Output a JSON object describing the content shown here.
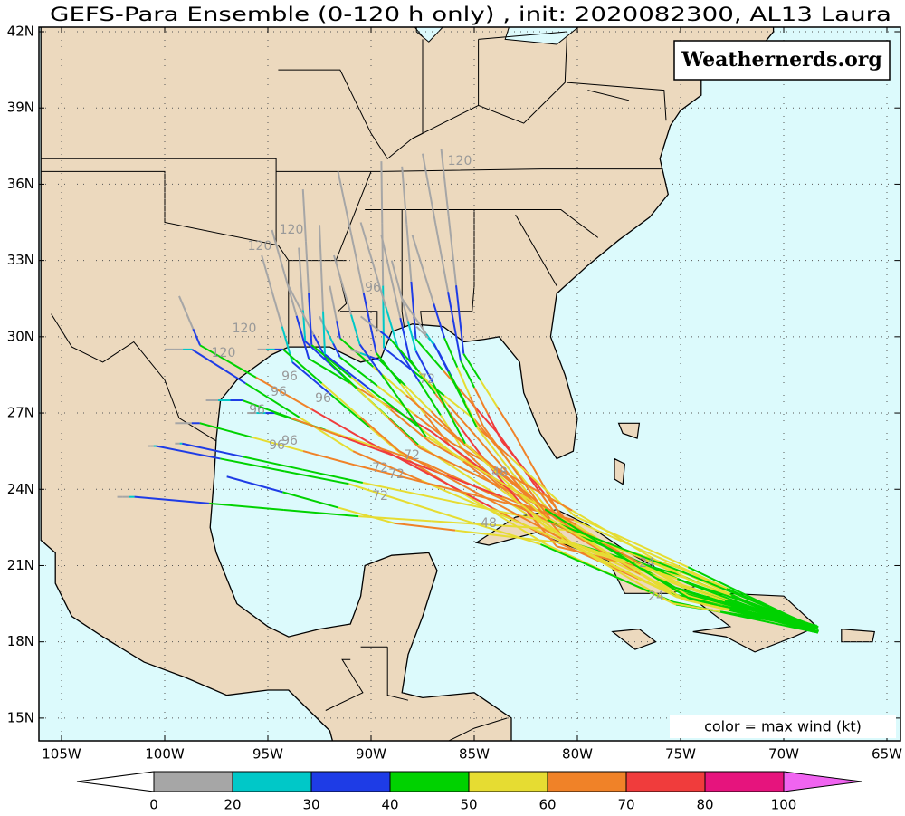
{
  "title": "GEFS-Para Ensemble (0-120 h only) , init: 2020082300, AL13 Laura",
  "watermark": "Weathernerds.org",
  "legend_note": "color = max wind (kt)",
  "lon_labels": [
    "105W",
    "100W",
    "95W",
    "90W",
    "85W",
    "80W",
    "75W",
    "70W",
    "65W"
  ],
  "lat_labels": [
    "42N",
    "39N",
    "36N",
    "33N",
    "30N",
    "27N",
    "24N",
    "21N",
    "18N",
    "15N"
  ],
  "colorbar": {
    "levels": [
      0,
      20,
      30,
      40,
      50,
      60,
      70,
      80,
      100
    ],
    "colors": [
      "#ffffff",
      "#a6a6a6",
      "#00c8c8",
      "#1e3ce6",
      "#00d200",
      "#e6dc32",
      "#f08228",
      "#f03c3c",
      "#e6147d",
      "#f064f0"
    ]
  },
  "hour_labels": [
    "120",
    "120",
    "120",
    "120",
    "120",
    "96",
    "96",
    "96",
    "96",
    "96",
    "96",
    "96",
    "72",
    "72",
    "72",
    "72",
    "72",
    "48",
    "48",
    "24",
    "24"
  ]
}
